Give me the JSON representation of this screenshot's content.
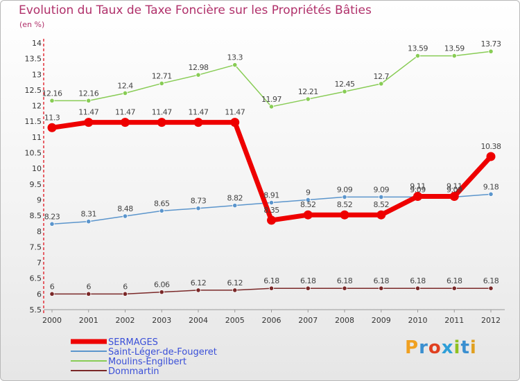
{
  "title": "Evolution du Taux de Taxe Foncière sur les Propriétés Bâties",
  "subtitle": "(en %)",
  "logo": [
    "P",
    "r",
    "o",
    "x",
    "i",
    "t",
    "i"
  ],
  "chart_data": {
    "type": "line",
    "x": [
      "2000",
      "2001",
      "2002",
      "2003",
      "2004",
      "2005",
      "2006",
      "2007",
      "2008",
      "2009",
      "2010",
      "2011",
      "2012"
    ],
    "y_ticks": [
      "5.5",
      "6",
      "6.5",
      "7",
      "7.5",
      "8",
      "8.5",
      "9",
      "9.5",
      "10",
      "10.5",
      "11",
      "11.5",
      "12",
      "12.5",
      "13",
      "13.5",
      "14"
    ],
    "ylim": [
      5.5,
      14
    ],
    "grid": false,
    "legend_position": "bottom-left",
    "series": [
      {
        "name": "SERMAGES",
        "color": "#ee0000",
        "values": [
          11.3,
          11.47,
          11.47,
          11.47,
          11.47,
          11.47,
          8.35,
          8.52,
          8.52,
          8.52,
          9.11,
          9.11,
          10.38
        ],
        "labels": [
          "11.3",
          "11.47",
          "11.47",
          "11.47",
          "11.47",
          "11.47",
          "8.35",
          "8.52",
          "8.52",
          "8.52",
          "9.11",
          "9.11",
          "10.38"
        ]
      },
      {
        "name": "Saint-Léger-de-Fougeret",
        "color": "#5b95cc",
        "values": [
          8.23,
          8.31,
          8.48,
          8.65,
          8.73,
          8.82,
          8.91,
          9.0,
          9.09,
          9.09,
          9.09,
          9.09,
          9.18
        ],
        "labels": [
          "8.23",
          "8.31",
          "8.48",
          "8.65",
          "8.73",
          "8.82",
          "8.91",
          "9",
          "9.09",
          "9.09",
          "9.09",
          "9.09",
          "9.18"
        ]
      },
      {
        "name": "Moulins-Engilbert",
        "color": "#88cc55",
        "values": [
          12.16,
          12.16,
          12.4,
          12.71,
          12.98,
          13.3,
          11.97,
          12.21,
          12.45,
          12.7,
          13.59,
          13.59,
          13.73
        ],
        "labels": [
          "12.16",
          "12.16",
          "12.4",
          "12.71",
          "12.98",
          "13.3",
          "11.97",
          "12.21",
          "12.45",
          "12.7",
          "13.59",
          "13.59",
          "13.73"
        ]
      },
      {
        "name": "Dommartin",
        "color": "#7a2828",
        "values": [
          6,
          6,
          6,
          6.06,
          6.12,
          6.12,
          6.18,
          6.18,
          6.18,
          6.18,
          6.18,
          6.18,
          6.18
        ],
        "labels": [
          "6",
          "6",
          "6",
          "6.06",
          "6.12",
          "6.12",
          "6.18",
          "6.18",
          "6.18",
          "6.18",
          "6.18",
          "6.18",
          "6.18"
        ]
      }
    ]
  }
}
